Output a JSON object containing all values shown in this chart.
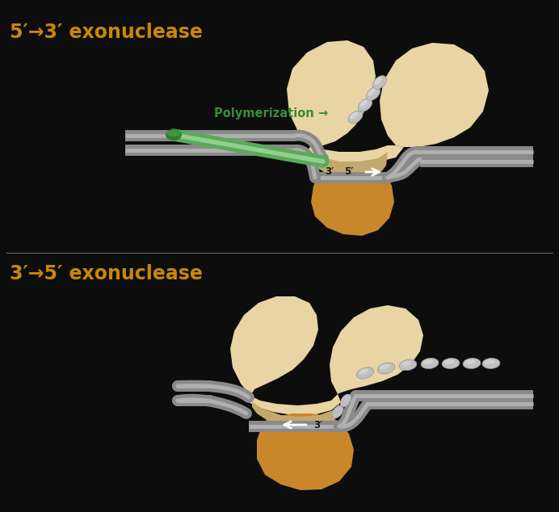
{
  "bg_color": "#0d0d0d",
  "title1": "5′→3′ exonuclease",
  "title2": "3′→5′ exonuclease",
  "title_color": "#c8860a",
  "title_fontsize": 17,
  "divider_color": "#666666",
  "polymerization_label": "Polymerization →",
  "poly_label_color": "#3a8c3a",
  "label_3prime": "3′",
  "label_5prime": "5′",
  "enzyme_body_color": "#e8d5a3",
  "enzyme_cleft_color": "#c4a96e",
  "enzyme_lower_color": "#c8872a",
  "gray_strand_color": "#8a8a8a",
  "gray_strand_light": "#b0b0b0",
  "green_strand_color": "#5aaa5a",
  "green_cap_color": "#2e7d2e",
  "white_color": "#ffffff",
  "nucleotide_color": "#c0c0c0",
  "nucleotide_dark": "#909090"
}
